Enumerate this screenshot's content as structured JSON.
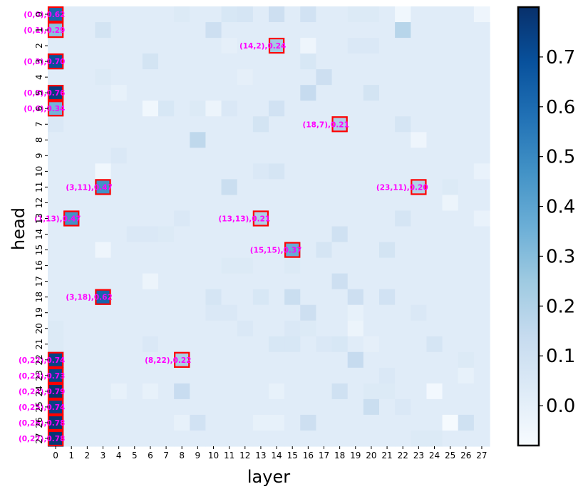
{
  "chart_data": {
    "type": "heatmap",
    "xlabel": "layer",
    "ylabel": "head",
    "x_ticks": [
      "0",
      "1",
      "2",
      "3",
      "4",
      "5",
      "6",
      "7",
      "8",
      "9",
      "10",
      "11",
      "12",
      "13",
      "14",
      "15",
      "16",
      "17",
      "18",
      "19",
      "20",
      "21",
      "22",
      "23",
      "24",
      "25",
      "26",
      "27"
    ],
    "y_ticks": [
      "0",
      "1",
      "2",
      "3",
      "4",
      "5",
      "6",
      "7",
      "8",
      "9",
      "10",
      "11",
      "12",
      "13",
      "14",
      "15",
      "16",
      "17",
      "18",
      "19",
      "20",
      "21",
      "22",
      "23",
      "24",
      "25",
      "26",
      "27"
    ],
    "colorbar": {
      "range": [
        -0.08,
        0.8
      ],
      "ticks": [
        "0.0",
        "0.1",
        "0.2",
        "0.3",
        "0.4",
        "0.5",
        "0.6",
        "0.7"
      ],
      "tick_values": [
        0.0,
        0.1,
        0.2,
        0.3,
        0.4,
        0.5,
        0.6,
        0.7
      ],
      "colormap": "Blues"
    },
    "baseline_value": 0.02,
    "cells": [
      {
        "layer": 0,
        "head": 0,
        "value": 0.62
      },
      {
        "layer": 0,
        "head": 1,
        "value": 0.29
      },
      {
        "layer": 0,
        "head": 3,
        "value": 0.7
      },
      {
        "layer": 0,
        "head": 5,
        "value": 0.76
      },
      {
        "layer": 0,
        "head": 6,
        "value": 0.34
      },
      {
        "layer": 0,
        "head": 22,
        "value": 0.74
      },
      {
        "layer": 0,
        "head": 23,
        "value": 0.73
      },
      {
        "layer": 0,
        "head": 24,
        "value": 0.79
      },
      {
        "layer": 0,
        "head": 25,
        "value": 0.74
      },
      {
        "layer": 0,
        "head": 26,
        "value": 0.78
      },
      {
        "layer": 0,
        "head": 27,
        "value": 0.78
      },
      {
        "layer": 1,
        "head": 13,
        "value": 0.47
      },
      {
        "layer": 3,
        "head": 11,
        "value": 0.47
      },
      {
        "layer": 3,
        "head": 18,
        "value": 0.62
      },
      {
        "layer": 8,
        "head": 22,
        "value": 0.22
      },
      {
        "layer": 13,
        "head": 13,
        "value": 0.21
      },
      {
        "layer": 14,
        "head": 2,
        "value": 0.24
      },
      {
        "layer": 15,
        "head": 15,
        "value": 0.37
      },
      {
        "layer": 18,
        "head": 7,
        "value": 0.21
      },
      {
        "layer": 23,
        "head": 11,
        "value": 0.2
      },
      {
        "layer": 22,
        "head": 1,
        "value": 0.18
      },
      {
        "layer": 9,
        "head": 8,
        "value": 0.16
      },
      {
        "layer": 16,
        "head": 5,
        "value": 0.14
      },
      {
        "layer": 8,
        "head": 24,
        "value": 0.13
      },
      {
        "layer": 19,
        "head": 22,
        "value": 0.14
      },
      {
        "layer": 15,
        "head": 18,
        "value": 0.12
      },
      {
        "layer": 11,
        "head": 11,
        "value": 0.12
      },
      {
        "layer": 20,
        "head": 25,
        "value": 0.12
      },
      {
        "layer": 10,
        "head": 1,
        "value": 0.11
      },
      {
        "layer": 16,
        "head": 26,
        "value": 0.11
      },
      {
        "layer": 26,
        "head": 26,
        "value": 0.1
      },
      {
        "layer": 14,
        "head": 0,
        "value": 0.11
      },
      {
        "layer": 17,
        "head": 4,
        "value": 0.11
      },
      {
        "layer": 18,
        "head": 14,
        "value": 0.1
      },
      {
        "layer": 18,
        "head": 17,
        "value": 0.11
      },
      {
        "layer": 19,
        "head": 18,
        "value": 0.11
      },
      {
        "layer": 16,
        "head": 19,
        "value": 0.11
      },
      {
        "layer": 18,
        "head": 24,
        "value": 0.1
      },
      {
        "layer": 14,
        "head": 6,
        "value": 0.09
      },
      {
        "layer": 9,
        "head": 26,
        "value": 0.09
      },
      {
        "layer": 21,
        "head": 18,
        "value": 0.09
      },
      {
        "layer": 16,
        "head": 0,
        "value": 0.09
      },
      {
        "layer": 3,
        "head": 1,
        "value": 0.08
      },
      {
        "layer": 6,
        "head": 3,
        "value": 0.08
      },
      {
        "layer": 13,
        "head": 7,
        "value": 0.08
      },
      {
        "layer": 20,
        "head": 5,
        "value": 0.08
      },
      {
        "layer": 22,
        "head": 7,
        "value": 0.07
      },
      {
        "layer": 24,
        "head": 21,
        "value": 0.07
      },
      {
        "layer": 10,
        "head": 18,
        "value": 0.07
      },
      {
        "layer": 17,
        "head": 15,
        "value": 0.07
      },
      {
        "layer": 21,
        "head": 15,
        "value": 0.08
      },
      {
        "layer": 22,
        "head": 13,
        "value": 0.07
      },
      {
        "layer": 14,
        "head": 10,
        "value": 0.07
      },
      {
        "layer": 12,
        "head": 0,
        "value": 0.07
      },
      {
        "layer": 11,
        "head": 0,
        "value": 0.06
      },
      {
        "layer": 7,
        "head": 6,
        "value": 0.06
      },
      {
        "layer": 16,
        "head": 3,
        "value": 0.06
      },
      {
        "layer": 20,
        "head": 2,
        "value": 0.05
      },
      {
        "layer": 19,
        "head": 2,
        "value": 0.05
      },
      {
        "layer": 14,
        "head": 21,
        "value": 0.06
      },
      {
        "layer": 15,
        "head": 21,
        "value": 0.06
      },
      {
        "layer": 6,
        "head": 21,
        "value": 0.05
      },
      {
        "layer": 4,
        "head": 9,
        "value": 0.05
      },
      {
        "layer": 13,
        "head": 10,
        "value": 0.05
      },
      {
        "layer": 18,
        "head": 21,
        "value": 0.06
      },
      {
        "layer": 17,
        "head": 21,
        "value": 0.05
      },
      {
        "layer": 11,
        "head": 6,
        "value": 0.05
      },
      {
        "layer": 13,
        "head": 18,
        "value": 0.06
      },
      {
        "layer": 10,
        "head": 19,
        "value": 0.05
      },
      {
        "layer": 11,
        "head": 19,
        "value": 0.05
      },
      {
        "layer": 12,
        "head": 20,
        "value": 0.05
      },
      {
        "layer": 8,
        "head": 13,
        "value": 0.05
      },
      {
        "layer": 21,
        "head": 23,
        "value": 0.05
      },
      {
        "layer": 22,
        "head": 25,
        "value": 0.05
      },
      {
        "layer": 5,
        "head": 14,
        "value": 0.05
      },
      {
        "layer": 6,
        "head": 14,
        "value": 0.05
      },
      {
        "layer": 7,
        "head": 14,
        "value": 0.04
      },
      {
        "layer": 15,
        "head": 16,
        "value": 0.04
      },
      {
        "layer": 12,
        "head": 16,
        "value": 0.04
      },
      {
        "layer": 11,
        "head": 16,
        "value": 0.04
      },
      {
        "layer": 9,
        "head": 6,
        "value": 0.04
      },
      {
        "layer": 8,
        "head": 0,
        "value": 0.04
      },
      {
        "layer": 19,
        "head": 0,
        "value": 0.04
      },
      {
        "layer": 20,
        "head": 0,
        "value": 0.04
      },
      {
        "layer": 21,
        "head": 24,
        "value": 0.04
      },
      {
        "layer": 20,
        "head": 24,
        "value": 0.04
      },
      {
        "layer": 16,
        "head": 20,
        "value": 0.04
      },
      {
        "layer": 15,
        "head": 20,
        "value": 0.05
      },
      {
        "layer": 3,
        "head": 4,
        "value": 0.04
      },
      {
        "layer": 23,
        "head": 19,
        "value": 0.05
      },
      {
        "layer": 26,
        "head": 22,
        "value": 0.04
      },
      {
        "layer": 25,
        "head": 11,
        "value": 0.04
      },
      {
        "layer": 23,
        "head": 27,
        "value": 0.04
      },
      {
        "layer": 24,
        "head": 27,
        "value": 0.04
      },
      {
        "layer": 0,
        "head": 7,
        "value": 0.05
      },
      {
        "layer": 0,
        "head": 20,
        "value": 0.04
      },
      {
        "layer": 0,
        "head": 21,
        "value": 0.04
      },
      {
        "layer": 24,
        "head": 24,
        "value": -0.06
      },
      {
        "layer": 25,
        "head": 26,
        "value": -0.07
      },
      {
        "layer": 6,
        "head": 6,
        "value": -0.05
      },
      {
        "layer": 22,
        "head": 0,
        "value": -0.05
      },
      {
        "layer": 3,
        "head": 10,
        "value": -0.05
      },
      {
        "layer": 3,
        "head": 15,
        "value": -0.04
      },
      {
        "layer": 23,
        "head": 8,
        "value": -0.04
      },
      {
        "layer": 27,
        "head": 0,
        "value": -0.04
      },
      {
        "layer": 16,
        "head": 2,
        "value": -0.04
      },
      {
        "layer": 10,
        "head": 6,
        "value": -0.03
      },
      {
        "layer": 6,
        "head": 17,
        "value": -0.03
      },
      {
        "layer": 19,
        "head": 20,
        "value": -0.03
      },
      {
        "layer": 25,
        "head": 12,
        "value": -0.03
      },
      {
        "layer": 27,
        "head": 10,
        "value": -0.02
      },
      {
        "layer": 27,
        "head": 13,
        "value": -0.02
      },
      {
        "layer": 13,
        "head": 26,
        "value": -0.01
      },
      {
        "layer": 14,
        "head": 26,
        "value": -0.01
      },
      {
        "layer": 8,
        "head": 26,
        "value": -0.01
      },
      {
        "layer": 14,
        "head": 24,
        "value": -0.01
      },
      {
        "layer": 6,
        "head": 24,
        "value": -0.01
      },
      {
        "layer": 4,
        "head": 5,
        "value": -0.01
      },
      {
        "layer": 4,
        "head": 24,
        "value": -0.01
      },
      {
        "layer": 26,
        "head": 23,
        "value": -0.01
      },
      {
        "layer": 20,
        "head": 21,
        "value": 0.0
      },
      {
        "layer": 19,
        "head": 19,
        "value": -0.01
      },
      {
        "layer": 11,
        "head": 2,
        "value": 0.0
      },
      {
        "layer": 12,
        "head": 4,
        "value": 0.0
      }
    ],
    "annotations": [
      {
        "layer": 0,
        "head": 0,
        "label": "(0,0),0.62"
      },
      {
        "layer": 0,
        "head": 1,
        "label": "(0,1),0.29"
      },
      {
        "layer": 14,
        "head": 2,
        "label": "(14,2),0.24"
      },
      {
        "layer": 0,
        "head": 3,
        "label": "(0,3),0.70"
      },
      {
        "layer": 0,
        "head": 5,
        "label": "(0,5),0.76"
      },
      {
        "layer": 0,
        "head": 6,
        "label": "(0,6),0.34"
      },
      {
        "layer": 18,
        "head": 7,
        "label": "(18,7),0.21"
      },
      {
        "layer": 3,
        "head": 11,
        "label": "(3,11),0.47"
      },
      {
        "layer": 23,
        "head": 11,
        "label": "(23,11),0.20"
      },
      {
        "layer": 1,
        "head": 13,
        "label": "(1,13),0.47"
      },
      {
        "layer": 13,
        "head": 13,
        "label": "(13,13),0.21"
      },
      {
        "layer": 15,
        "head": 15,
        "label": "(15,15),0.37"
      },
      {
        "layer": 3,
        "head": 18,
        "label": "(3,18),0.62"
      },
      {
        "layer": 0,
        "head": 22,
        "label": "(0,22),0.74"
      },
      {
        "layer": 8,
        "head": 22,
        "label": "(8,22),0.22"
      },
      {
        "layer": 0,
        "head": 23,
        "label": "(0,23),0.73"
      },
      {
        "layer": 0,
        "head": 24,
        "label": "(0,24),0.79"
      },
      {
        "layer": 0,
        "head": 25,
        "label": "(0,25),0.74"
      },
      {
        "layer": 0,
        "head": 26,
        "label": "(0,26),0.78"
      },
      {
        "layer": 0,
        "head": 27,
        "label": "(0,27),0.78"
      }
    ]
  }
}
